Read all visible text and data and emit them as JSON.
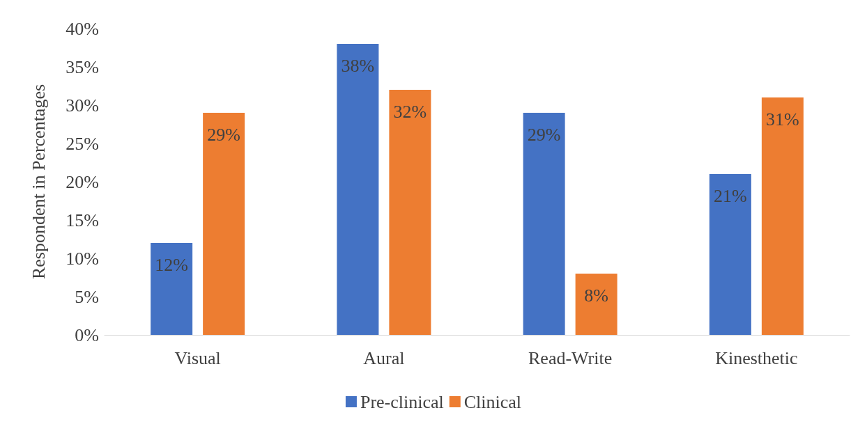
{
  "chart_data": {
    "type": "bar",
    "ylabel": "Respondent in Percentages",
    "categories": [
      "Visual",
      "Aural",
      "Read-Write",
      "Kinesthetic"
    ],
    "series": [
      {
        "name": "Pre-clinical",
        "color": "#4472c4",
        "values": [
          12,
          38,
          29,
          21
        ]
      },
      {
        "name": "Clinical",
        "color": "#ed7d31",
        "values": [
          29,
          32,
          8,
          31
        ]
      }
    ],
    "ylim": [
      0,
      40
    ],
    "yticks": [
      {
        "value": 0,
        "label": "0%"
      },
      {
        "value": 5,
        "label": "5%"
      },
      {
        "value": 10,
        "label": "10%"
      },
      {
        "value": 15,
        "label": "15%"
      },
      {
        "value": 20,
        "label": "20%"
      },
      {
        "value": 25,
        "label": "25%"
      },
      {
        "value": 30,
        "label": "30%"
      },
      {
        "value": 35,
        "label": "35%"
      },
      {
        "value": 40,
        "label": "40%"
      }
    ],
    "value_labels": [
      [
        "12%",
        "38%",
        "29%",
        "21%"
      ],
      [
        "29%",
        "32%",
        "8%",
        "31%"
      ]
    ],
    "grid": false,
    "legend": "bottom"
  }
}
